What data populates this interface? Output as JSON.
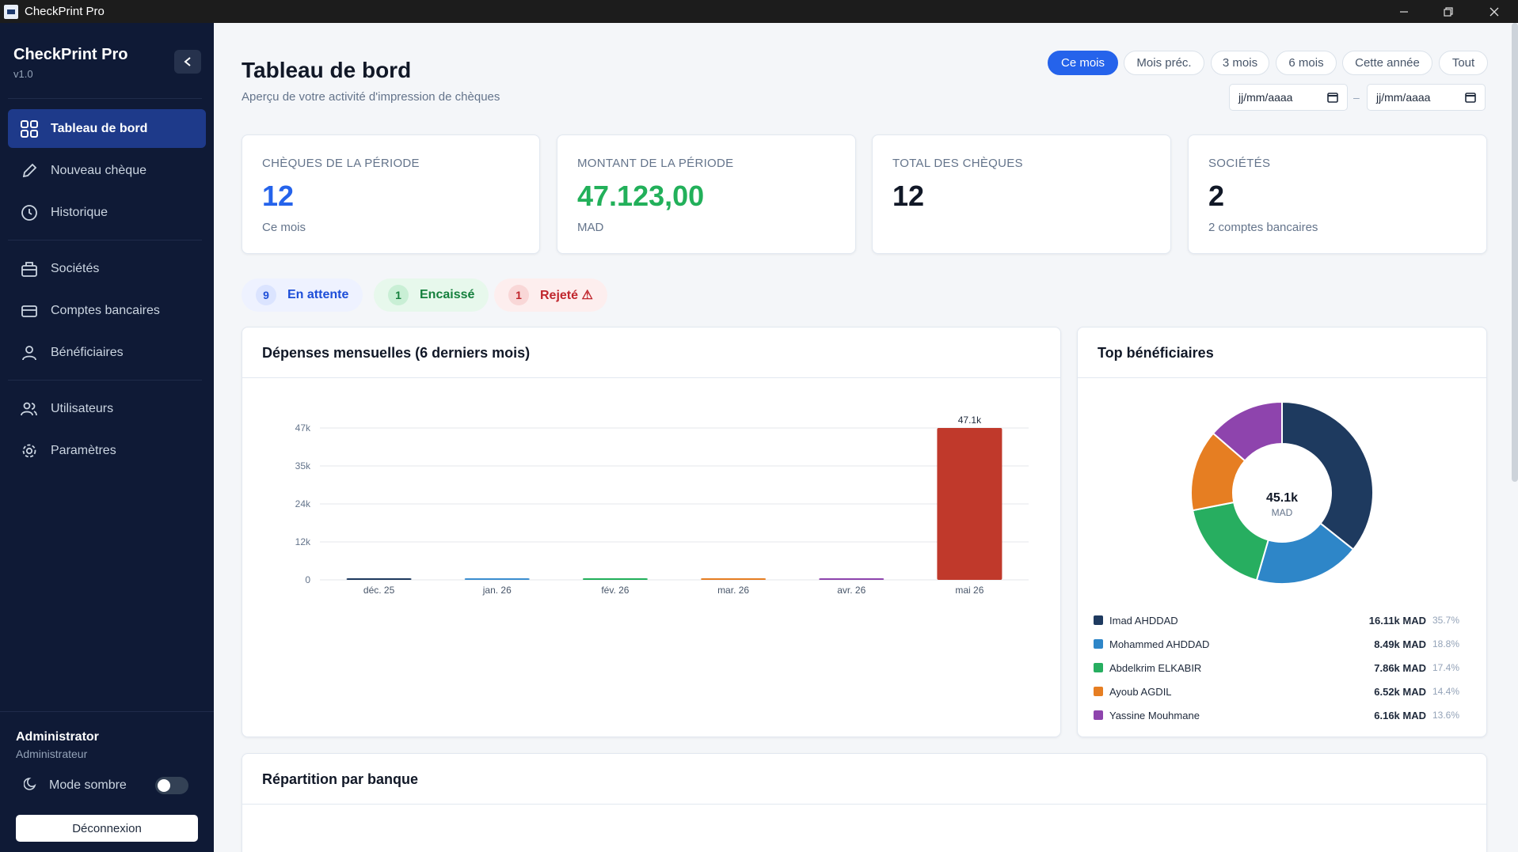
{
  "window": {
    "title": "CheckPrint Pro",
    "minimize": "—",
    "restore": "❐",
    "close": "✕"
  },
  "sidebar": {
    "app_name": "CheckPrint Pro",
    "version": "v1.0",
    "items": [
      {
        "label": "Tableau de bord",
        "icon": "dashboard-icon"
      },
      {
        "label": "Nouveau chèque",
        "icon": "pencil-icon"
      },
      {
        "label": "Historique",
        "icon": "clock-icon"
      },
      {
        "label": "Sociétés",
        "icon": "building-icon"
      },
      {
        "label": "Comptes bancaires",
        "icon": "credit-card-icon"
      },
      {
        "label": "Bénéficiaires",
        "icon": "user-icon"
      },
      {
        "label": "Utilisateurs",
        "icon": "users-icon"
      },
      {
        "label": "Paramètres",
        "icon": "gear-icon"
      }
    ],
    "user_name": "Administrator",
    "user_role": "Administrateur",
    "dark_mode_label": "Mode sombre",
    "dark_mode_on": false,
    "logout_label": "Déconnexion"
  },
  "header": {
    "title": "Tableau de bord",
    "subtitle": "Aperçu de votre activité d'impression de chèques",
    "periods": [
      "Ce mois",
      "Mois préc.",
      "3 mois",
      "6 mois",
      "Cette année",
      "Tout"
    ],
    "active_period": "Ce mois",
    "date_from_placeholder": "jj/mm/aaaa",
    "date_to_placeholder": "jj/mm/aaaa",
    "date_separator": "–"
  },
  "stats": [
    {
      "label": "CHÈQUES DE LA PÉRIODE",
      "value": "12",
      "sub": "Ce mois",
      "color": "#2563eb"
    },
    {
      "label": "MONTANT DE LA PÉRIODE",
      "value": "47.123,00",
      "sub": "MAD",
      "color": "#22b05a"
    },
    {
      "label": "TOTAL DES CHÈQUES",
      "value": "12",
      "sub": "",
      "color": "#111827"
    },
    {
      "label": "SOCIÉTÉS",
      "value": "2",
      "sub": "2 comptes bancaires",
      "color": "#111827"
    }
  ],
  "status": [
    {
      "count": "9",
      "label": "En attente",
      "fg": "#1d4ed8",
      "bg": "#eef2ff",
      "badge": "#dbe4ff"
    },
    {
      "count": "1",
      "label": "Encaissé",
      "fg": "#15803d",
      "bg": "#e7f8ec",
      "badge": "#c9efd5"
    },
    {
      "count": "1",
      "label": "Rejeté ⚠",
      "fg": "#c0262d",
      "bg": "#fdeeee",
      "badge": "#f9d7d7"
    }
  ],
  "monthly": {
    "title": "Dépenses mensuelles (6 derniers mois)",
    "chart_data": {
      "type": "bar",
      "categories": [
        "déc. 25",
        "jan. 26",
        "fév. 26",
        "mar. 26",
        "avr. 26",
        "mai 26"
      ],
      "values": [
        0,
        0,
        0,
        0,
        0,
        47123
      ],
      "colors": [
        "#1e3a5f",
        "#3b8ed0",
        "#22b05a",
        "#e67e22",
        "#8e44ad",
        "#c0392b"
      ],
      "yticks": [
        "0",
        "12k",
        "24k",
        "35k",
        "47k"
      ],
      "ytick_values": [
        0,
        11781,
        23562,
        35342,
        47123
      ],
      "data_labels": [
        "",
        "",
        "",
        "",
        "",
        "47.1k"
      ],
      "ylim": [
        0,
        47123
      ],
      "grid": true
    }
  },
  "top_beneficiaries": {
    "title": "Top bénéficiaires",
    "center_value": "45.1k",
    "center_unit": "MAD",
    "chart_data": {
      "type": "pie",
      "donut": true,
      "labels": [
        "Imad AHDDAD",
        "Mohammed AHDDAD",
        "Abdelkrim ELKABIR",
        "Ayoub AGDIL",
        "Yassine Mouhmane"
      ],
      "values": [
        16.11,
        8.49,
        7.86,
        6.52,
        6.16
      ],
      "amounts": [
        "16.11k MAD",
        "8.49k MAD",
        "7.86k MAD",
        "6.52k MAD",
        "6.16k MAD"
      ],
      "percents": [
        "35.7%",
        "18.8%",
        "17.4%",
        "14.4%",
        "13.6%"
      ],
      "colors": [
        "#1e3a5f",
        "#2e86c8",
        "#27ae60",
        "#e67e22",
        "#8e44ad"
      ]
    }
  },
  "bank_split": {
    "title": "Répartition par banque"
  }
}
